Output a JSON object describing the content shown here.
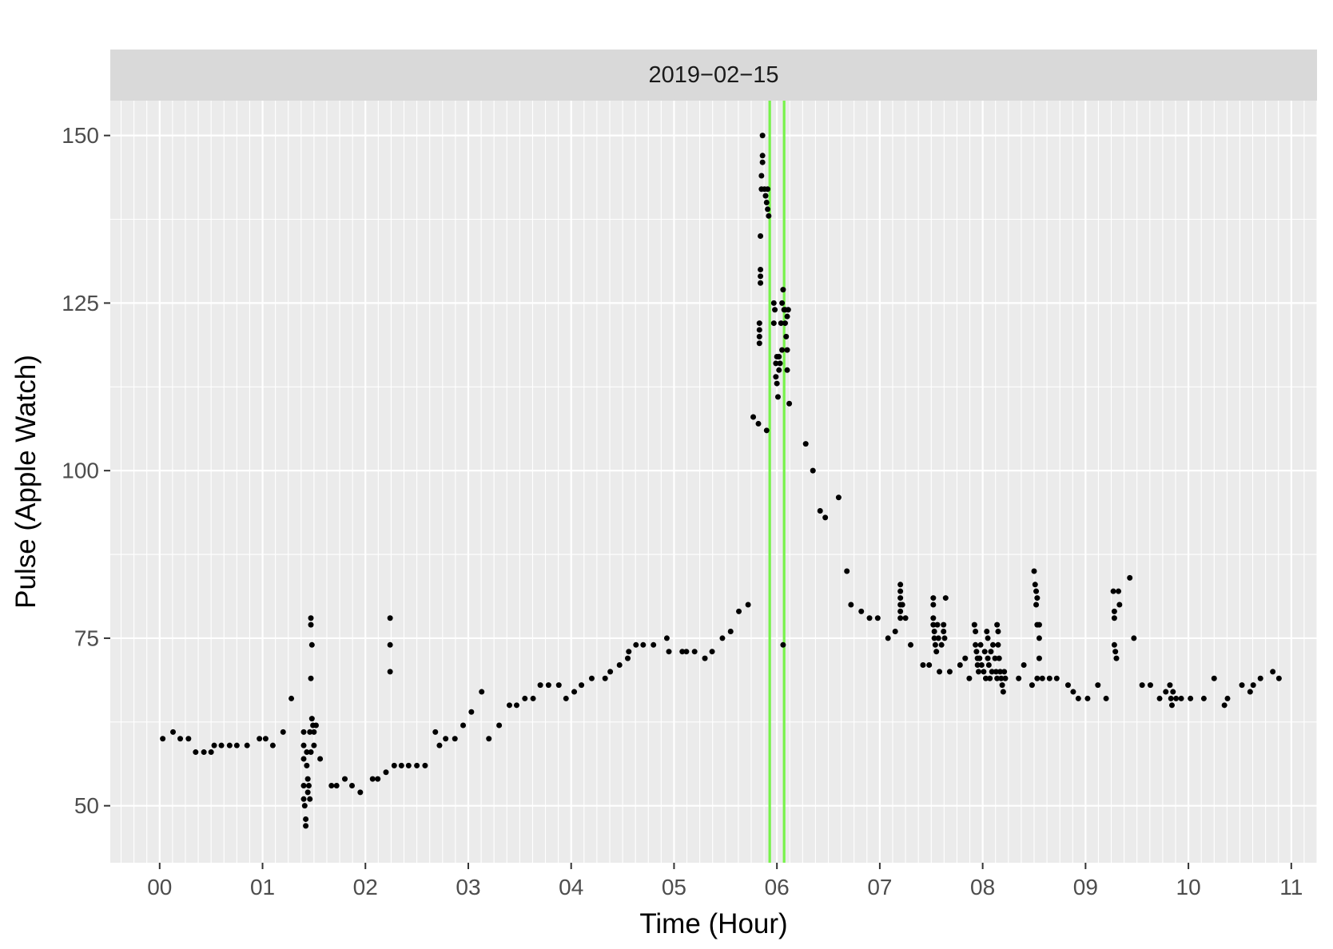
{
  "chart_data": {
    "type": "scatter",
    "facet_label": "2019−02−15",
    "xlabel": "Time (Hour)",
    "ylabel": "Pulse (Apple Watch)",
    "xlim": [
      -0.48,
      11.25
    ],
    "ylim": [
      41.5,
      155.2
    ],
    "x_ticks": [
      0,
      1,
      2,
      3,
      4,
      5,
      6,
      7,
      8,
      9,
      10,
      11
    ],
    "x_tick_labels": [
      "00",
      "01",
      "02",
      "03",
      "04",
      "05",
      "06",
      "07",
      "08",
      "09",
      "10",
      "11"
    ],
    "y_ticks": [
      50,
      75,
      100,
      125,
      150
    ],
    "y_tick_labels": [
      "50",
      "75",
      "100",
      "125",
      "150"
    ],
    "grid": true,
    "vlines": {
      "color": "#77f34a",
      "x": [
        5.93,
        6.07
      ]
    },
    "colors": {
      "panel": "#ebebeb",
      "strip": "#d9d9d9",
      "grid": "#ffffff",
      "points": "#000000"
    },
    "points": [
      [
        0.03,
        60
      ],
      [
        0.13,
        61
      ],
      [
        0.2,
        60
      ],
      [
        0.28,
        60
      ],
      [
        0.35,
        58
      ],
      [
        0.43,
        58
      ],
      [
        0.5,
        58
      ],
      [
        0.53,
        59
      ],
      [
        0.6,
        59
      ],
      [
        0.68,
        59
      ],
      [
        0.75,
        59
      ],
      [
        0.85,
        59
      ],
      [
        0.97,
        60
      ],
      [
        1.03,
        60
      ],
      [
        1.1,
        59
      ],
      [
        1.2,
        61
      ],
      [
        1.28,
        66
      ],
      [
        1.4,
        61
      ],
      [
        1.4,
        59
      ],
      [
        1.4,
        57
      ],
      [
        1.4,
        53
      ],
      [
        1.4,
        51
      ],
      [
        1.41,
        50
      ],
      [
        1.42,
        48
      ],
      [
        1.42,
        47
      ],
      [
        1.43,
        58
      ],
      [
        1.43,
        56
      ],
      [
        1.44,
        54
      ],
      [
        1.44,
        52
      ],
      [
        1.45,
        53
      ],
      [
        1.46,
        51
      ],
      [
        1.46,
        61
      ],
      [
        1.47,
        58
      ],
      [
        1.47,
        78
      ],
      [
        1.47,
        77
      ],
      [
        1.48,
        74
      ],
      [
        1.47,
        69
      ],
      [
        1.48,
        63
      ],
      [
        1.49,
        62
      ],
      [
        1.5,
        61
      ],
      [
        1.5,
        59
      ],
      [
        1.52,
        62
      ],
      [
        1.56,
        57
      ],
      [
        1.67,
        53
      ],
      [
        1.72,
        53
      ],
      [
        1.8,
        54
      ],
      [
        1.87,
        53
      ],
      [
        1.95,
        52
      ],
      [
        2.07,
        54
      ],
      [
        2.12,
        54
      ],
      [
        2.2,
        55
      ],
      [
        2.24,
        78
      ],
      [
        2.24,
        74
      ],
      [
        2.24,
        70
      ],
      [
        2.28,
        56
      ],
      [
        2.35,
        56
      ],
      [
        2.42,
        56
      ],
      [
        2.5,
        56
      ],
      [
        2.58,
        56
      ],
      [
        2.68,
        61
      ],
      [
        2.72,
        59
      ],
      [
        2.78,
        60
      ],
      [
        2.87,
        60
      ],
      [
        2.95,
        62
      ],
      [
        3.03,
        64
      ],
      [
        3.13,
        67
      ],
      [
        3.2,
        60
      ],
      [
        3.3,
        62
      ],
      [
        3.4,
        65
      ],
      [
        3.47,
        65
      ],
      [
        3.55,
        66
      ],
      [
        3.63,
        66
      ],
      [
        3.7,
        68
      ],
      [
        3.78,
        68
      ],
      [
        3.88,
        68
      ],
      [
        3.95,
        66
      ],
      [
        4.03,
        67
      ],
      [
        4.1,
        68
      ],
      [
        4.2,
        69
      ],
      [
        4.33,
        69
      ],
      [
        4.38,
        70
      ],
      [
        4.47,
        71
      ],
      [
        4.55,
        72
      ],
      [
        4.56,
        73
      ],
      [
        4.63,
        74
      ],
      [
        4.7,
        74
      ],
      [
        4.8,
        74
      ],
      [
        4.93,
        75
      ],
      [
        4.95,
        73
      ],
      [
        5.08,
        73
      ],
      [
        5.12,
        73
      ],
      [
        5.2,
        73
      ],
      [
        5.3,
        72
      ],
      [
        5.37,
        73
      ],
      [
        5.47,
        75
      ],
      [
        5.55,
        76
      ],
      [
        5.63,
        79
      ],
      [
        5.72,
        80
      ],
      [
        5.77,
        108
      ],
      [
        5.82,
        107
      ],
      [
        5.83,
        122
      ],
      [
        5.83,
        121
      ],
      [
        5.83,
        120
      ],
      [
        5.83,
        119
      ],
      [
        5.84,
        130
      ],
      [
        5.84,
        129
      ],
      [
        5.84,
        128
      ],
      [
        5.84,
        135
      ],
      [
        5.85,
        144
      ],
      [
        5.85,
        142
      ],
      [
        5.86,
        147
      ],
      [
        5.86,
        146
      ],
      [
        5.86,
        150
      ],
      [
        5.88,
        142
      ],
      [
        5.89,
        141
      ],
      [
        5.9,
        106
      ],
      [
        5.9,
        140
      ],
      [
        5.91,
        142
      ],
      [
        5.91,
        139
      ],
      [
        5.92,
        138
      ],
      [
        5.97,
        125
      ],
      [
        5.97,
        122
      ],
      [
        5.98,
        124
      ],
      [
        5.99,
        116
      ],
      [
        5.99,
        114
      ],
      [
        6.0,
        117
      ],
      [
        6.0,
        113
      ],
      [
        6.01,
        111
      ],
      [
        6.02,
        117
      ],
      [
        6.02,
        115
      ],
      [
        6.03,
        116
      ],
      [
        6.04,
        122
      ],
      [
        6.05,
        118
      ],
      [
        6.05,
        125
      ],
      [
        6.06,
        127
      ],
      [
        6.06,
        74
      ],
      [
        6.07,
        124
      ],
      [
        6.08,
        124
      ],
      [
        6.08,
        122
      ],
      [
        6.09,
        120
      ],
      [
        6.1,
        118
      ],
      [
        6.1,
        115
      ],
      [
        6.1,
        123
      ],
      [
        6.11,
        124
      ],
      [
        6.12,
        110
      ],
      [
        6.28,
        104
      ],
      [
        6.35,
        100
      ],
      [
        6.42,
        94
      ],
      [
        6.47,
        93
      ],
      [
        6.6,
        96
      ],
      [
        6.68,
        85
      ],
      [
        6.72,
        80
      ],
      [
        6.82,
        79
      ],
      [
        6.9,
        78
      ],
      [
        6.98,
        78
      ],
      [
        7.08,
        75
      ],
      [
        7.15,
        76
      ],
      [
        7.2,
        83
      ],
      [
        7.2,
        82
      ],
      [
        7.2,
        81
      ],
      [
        7.2,
        80
      ],
      [
        7.2,
        79
      ],
      [
        7.2,
        78
      ],
      [
        7.22,
        80
      ],
      [
        7.25,
        78
      ],
      [
        7.3,
        74
      ],
      [
        7.42,
        71
      ],
      [
        7.48,
        71
      ],
      [
        7.52,
        81
      ],
      [
        7.52,
        80
      ],
      [
        7.52,
        78
      ],
      [
        7.52,
        77
      ],
      [
        7.53,
        76
      ],
      [
        7.53,
        75
      ],
      [
        7.54,
        74
      ],
      [
        7.55,
        73
      ],
      [
        7.56,
        77
      ],
      [
        7.57,
        75
      ],
      [
        7.58,
        70
      ],
      [
        7.6,
        74
      ],
      [
        7.62,
        77
      ],
      [
        7.62,
        76
      ],
      [
        7.63,
        75
      ],
      [
        7.64,
        81
      ],
      [
        7.68,
        70
      ],
      [
        7.78,
        71
      ],
      [
        7.83,
        72
      ],
      [
        7.87,
        69
      ],
      [
        7.92,
        77
      ],
      [
        7.93,
        76
      ],
      [
        7.93,
        74
      ],
      [
        7.94,
        73
      ],
      [
        7.95,
        72
      ],
      [
        7.95,
        71
      ],
      [
        7.96,
        70
      ],
      [
        7.97,
        72
      ],
      [
        7.98,
        74
      ],
      [
        7.99,
        71
      ],
      [
        8.01,
        70
      ],
      [
        8.02,
        73
      ],
      [
        8.03,
        69
      ],
      [
        8.04,
        76
      ],
      [
        8.05,
        75
      ],
      [
        8.05,
        72
      ],
      [
        8.06,
        71
      ],
      [
        8.07,
        69
      ],
      [
        8.08,
        73
      ],
      [
        8.09,
        70
      ],
      [
        8.1,
        74
      ],
      [
        8.12,
        72
      ],
      [
        8.13,
        70
      ],
      [
        8.14,
        69
      ],
      [
        8.14,
        77
      ],
      [
        8.15,
        76
      ],
      [
        8.15,
        74
      ],
      [
        8.16,
        72
      ],
      [
        8.17,
        70
      ],
      [
        8.18,
        69
      ],
      [
        8.19,
        68
      ],
      [
        8.2,
        67
      ],
      [
        8.21,
        70
      ],
      [
        8.22,
        69
      ],
      [
        8.35,
        69
      ],
      [
        8.4,
        71
      ],
      [
        8.48,
        68
      ],
      [
        8.5,
        85
      ],
      [
        8.51,
        83
      ],
      [
        8.52,
        82
      ],
      [
        8.53,
        81
      ],
      [
        8.52,
        80
      ],
      [
        8.53,
        77
      ],
      [
        8.55,
        77
      ],
      [
        8.55,
        75
      ],
      [
        8.55,
        72
      ],
      [
        8.53,
        69
      ],
      [
        8.58,
        69
      ],
      [
        8.65,
        69
      ],
      [
        8.72,
        69
      ],
      [
        8.83,
        68
      ],
      [
        8.88,
        67
      ],
      [
        8.93,
        66
      ],
      [
        9.02,
        66
      ],
      [
        9.12,
        68
      ],
      [
        9.2,
        66
      ],
      [
        9.27,
        82
      ],
      [
        9.28,
        79
      ],
      [
        9.28,
        78
      ],
      [
        9.28,
        74
      ],
      [
        9.29,
        73
      ],
      [
        9.3,
        72
      ],
      [
        9.32,
        82
      ],
      [
        9.33,
        80
      ],
      [
        9.43,
        84
      ],
      [
        9.47,
        75
      ],
      [
        9.55,
        68
      ],
      [
        9.63,
        68
      ],
      [
        9.72,
        66
      ],
      [
        9.78,
        67
      ],
      [
        9.82,
        68
      ],
      [
        9.83,
        66
      ],
      [
        9.84,
        65
      ],
      [
        9.85,
        67
      ],
      [
        9.88,
        66
      ],
      [
        9.93,
        66
      ],
      [
        10.02,
        66
      ],
      [
        10.15,
        66
      ],
      [
        10.25,
        69
      ],
      [
        10.35,
        65
      ],
      [
        10.38,
        66
      ],
      [
        10.52,
        68
      ],
      [
        10.6,
        67
      ],
      [
        10.63,
        68
      ],
      [
        10.7,
        69
      ],
      [
        10.82,
        70
      ],
      [
        10.88,
        69
      ]
    ]
  }
}
